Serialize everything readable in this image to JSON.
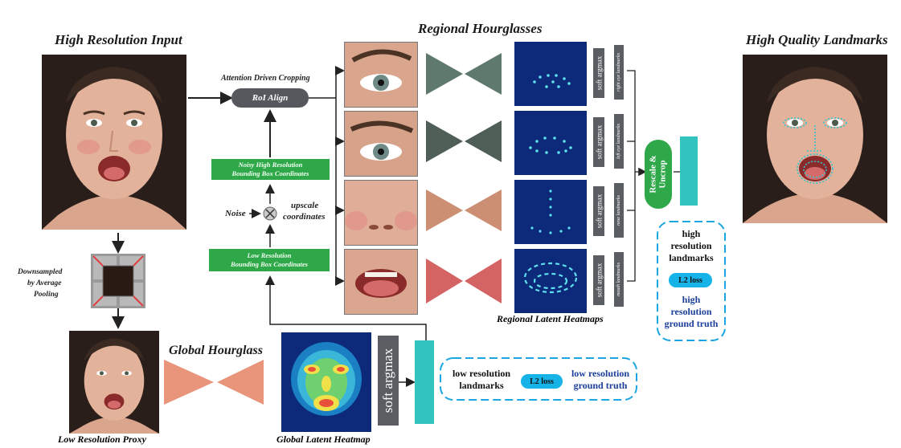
{
  "titles": {
    "high_res_input": "High Resolution Input",
    "regional_hourglasses": "Regional Hourglasses",
    "high_quality_landmarks": "High Quality Landmarks",
    "global_hourglass": "Global Hourglass",
    "regional_latent_heatmaps": "Regional Latent Heatmaps",
    "low_res_proxy": "Low Resolution Proxy",
    "global_latent_heatmap": "Global Latent Heatmap"
  },
  "labels": {
    "attention_cropping": "Attention Driven Cropping",
    "roi_align": "RoI Align",
    "noisy_bbox_line1": "Noisy High Resolution",
    "noisy_bbox_line2": "Bounding Box Coordinates",
    "noise": "Noise",
    "upscale_line1": "upscale",
    "upscale_line2": "coordinates",
    "lowres_bbox_line1": "Low Resolution",
    "lowres_bbox_line2": "Bounding Box Coordinates",
    "downsampled_line1": "Downsampled",
    "downsampled_line2": "by Average",
    "downsampled_line3": "Pooling",
    "rescale_uncrop_line1": "Rescale &",
    "rescale_uncrop_line2": "Uncrop",
    "soft_argmax": "soft argmax",
    "right_eye_landmarks": "right eye landmarks",
    "left_eye_landmarks": "left eye landmarks",
    "nose_landmarks": "nose landmarks",
    "mouth_landmarks": "mouth landmarks",
    "high_res_landmarks_1": "high",
    "high_res_landmarks_2": "resolution",
    "high_res_landmarks_3": "landmarks",
    "l2_loss": "L2 loss",
    "high_res_gt_1": "high",
    "high_res_gt_2": "resolution",
    "high_res_gt_3": "ground truth",
    "low_res_landmarks_1": "low resolution",
    "low_res_landmarks_2": "landmarks",
    "low_res_gt_1": "low resolution",
    "low_res_gt_2": "ground truth"
  },
  "colors": {
    "green_box": "#2fa84a",
    "teal_bar": "#33c4c0",
    "dashed_border": "#1aa6e0",
    "loss_pill": "#15b3e8",
    "hourglass_eye": "#5f7a6c",
    "hourglass_eye2": "#4f5f58",
    "hourglass_nose": "#cc8f74",
    "hourglass_mouth": "#d46464",
    "hourglass_global": "#e8957c",
    "heatmap_bg": "#0d2a7a"
  },
  "icons": {
    "noise_node": "cross-circle-icon",
    "pooling": "pooling-grid-icon"
  }
}
